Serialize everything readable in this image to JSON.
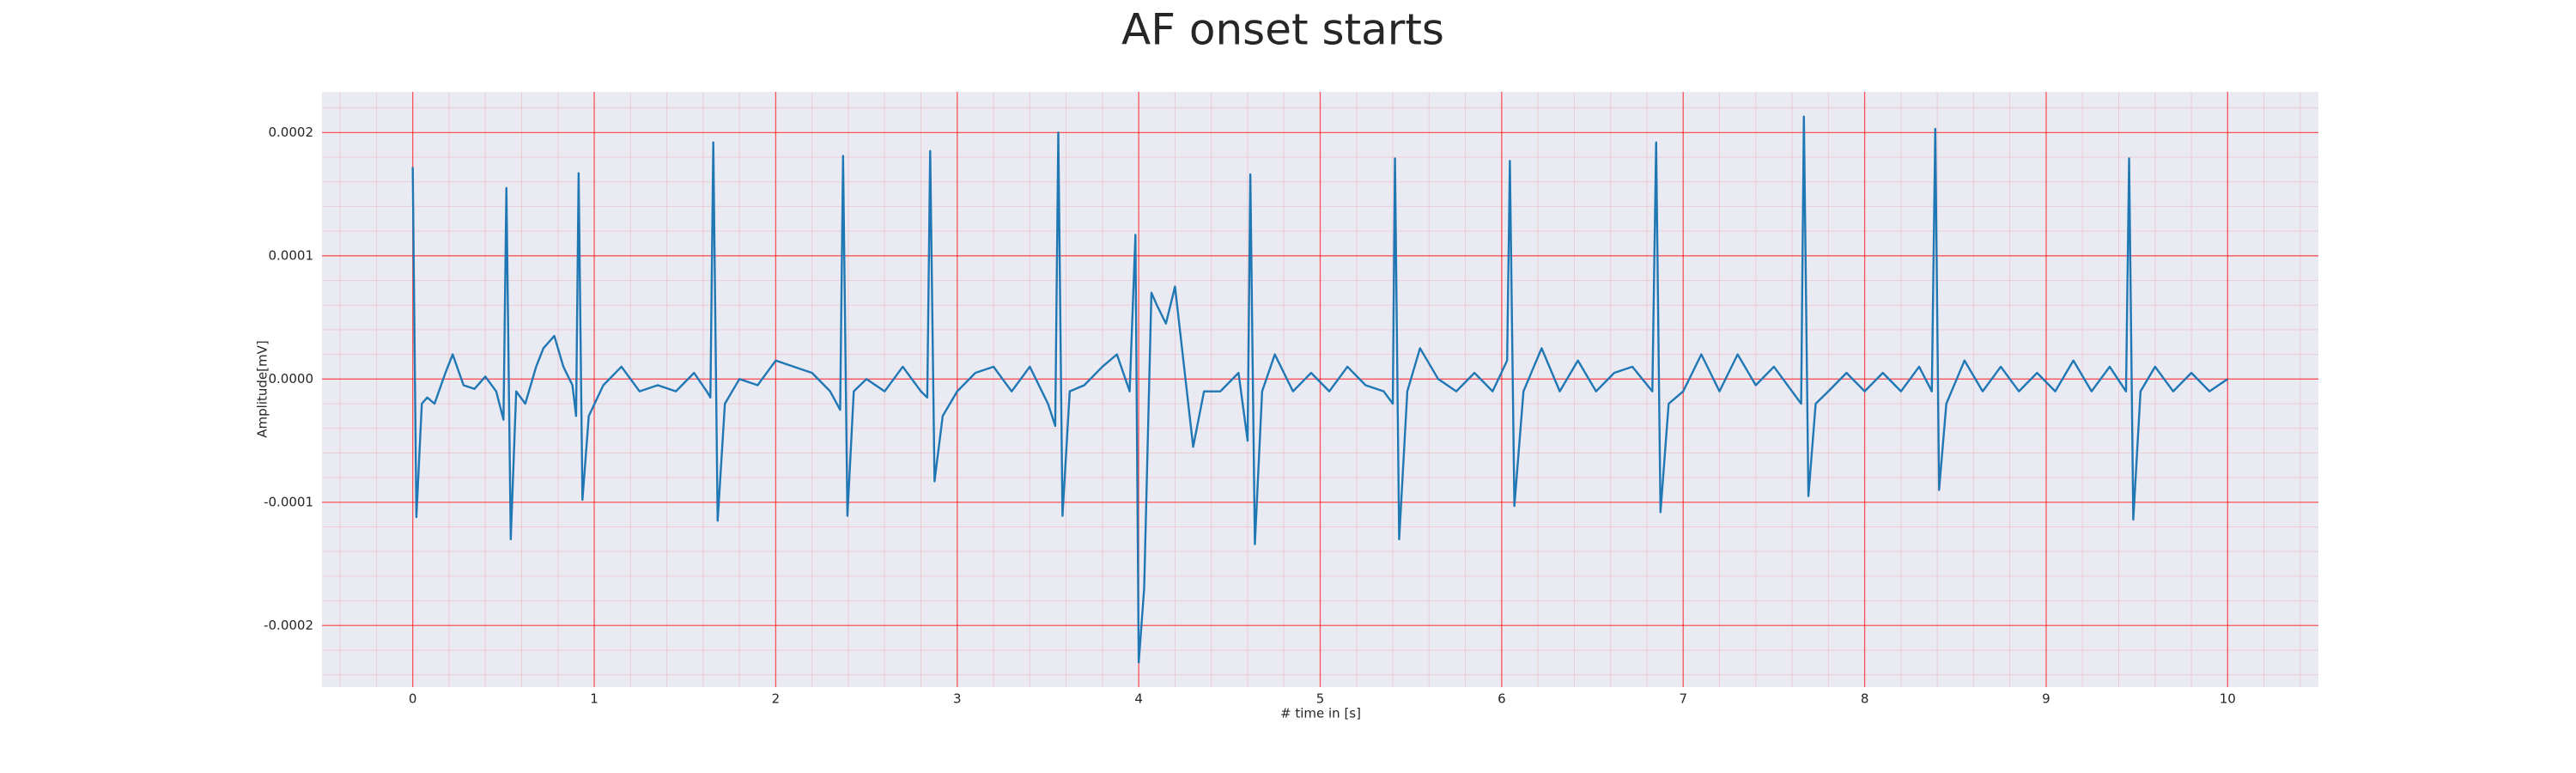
{
  "chart_data": {
    "type": "line",
    "title": "AF onset starts",
    "xlabel": "# time in [s]",
    "ylabel": "Amplitude[mV]",
    "xlim": [
      -0.5,
      10.5
    ],
    "ylim": [
      -0.00025,
      0.000233
    ],
    "xticks": [
      0,
      1,
      2,
      3,
      4,
      5,
      6,
      7,
      8,
      9,
      10
    ],
    "yticks": [
      {
        "value": -0.0002,
        "label": "-0.0002"
      },
      {
        "value": -0.0001,
        "label": "-0.0001"
      },
      {
        "value": 0,
        "label": "0.0000"
      },
      {
        "value": 0.0001,
        "label": "0.0001"
      },
      {
        "value": 0.0002,
        "label": "0.0002"
      }
    ],
    "grid": true,
    "minor_grid": true,
    "grid_color": "#ff0000",
    "background": "#eaeaf2",
    "x": [
      0,
      0.02,
      0.05,
      0.08,
      0.12,
      0.18,
      0.22,
      0.28,
      0.34,
      0.4,
      0.46,
      0.5,
      0.516,
      0.54,
      0.57,
      0.62,
      0.68,
      0.72,
      0.78,
      0.83,
      0.88,
      0.9,
      0.914,
      0.935,
      0.97,
      1.05,
      1.15,
      1.25,
      1.35,
      1.45,
      1.55,
      1.62,
      1.64,
      1.656,
      1.68,
      1.72,
      1.8,
      1.9,
      2.0,
      2.1,
      2.2,
      2.3,
      2.355,
      2.371,
      2.395,
      2.43,
      2.5,
      2.6,
      2.7,
      2.8,
      2.835,
      2.851,
      2.875,
      2.92,
      3.0,
      3.1,
      3.2,
      3.3,
      3.4,
      3.5,
      3.54,
      3.557,
      3.58,
      3.62,
      3.7,
      3.8,
      3.88,
      3.95,
      3.982,
      4.0,
      4.03,
      4.07,
      4.1,
      4.15,
      4.2,
      4.25,
      4.3,
      4.36,
      4.45,
      4.55,
      4.6,
      4.615,
      4.64,
      4.68,
      4.75,
      4.85,
      4.95,
      5.05,
      5.15,
      5.25,
      5.35,
      5.4,
      5.412,
      5.435,
      5.48,
      5.55,
      5.65,
      5.75,
      5.85,
      5.95,
      6.03,
      6.045,
      6.07,
      6.12,
      6.22,
      6.32,
      6.42,
      6.52,
      6.62,
      6.72,
      6.83,
      6.851,
      6.875,
      6.92,
      7.0,
      7.1,
      7.2,
      7.3,
      7.4,
      7.5,
      7.6,
      7.65,
      7.665,
      7.69,
      7.73,
      7.8,
      7.9,
      8.0,
      8.1,
      8.2,
      8.3,
      8.37,
      8.389,
      8.41,
      8.45,
      8.55,
      8.65,
      8.75,
      8.85,
      8.95,
      9.05,
      9.15,
      9.25,
      9.35,
      9.44,
      9.457,
      9.48,
      9.52,
      9.6,
      9.7,
      9.8,
      9.9,
      10.0
    ],
    "series": [
      {
        "color": "#1f77b4",
        "values": [
          0.000172,
          -0.000112,
          -2e-05,
          -1.5e-05,
          -2e-05,
          5e-06,
          2e-05,
          -5e-06,
          -8e-06,
          2e-06,
          -1e-05,
          -3.3e-05,
          0.000155,
          -0.00013,
          -1e-05,
          -2e-05,
          1e-05,
          2.5e-05,
          3.5e-05,
          1e-05,
          -5e-06,
          -3e-05,
          0.000167,
          -9.8e-05,
          -3e-05,
          -5e-06,
          1e-05,
          -1e-05,
          -5e-06,
          -1e-05,
          5e-06,
          -1e-05,
          -1.5e-05,
          0.000192,
          -0.000115,
          -2e-05,
          0.0,
          -5e-06,
          1.5e-05,
          1e-05,
          5e-06,
          -1e-05,
          -2.5e-05,
          0.000181,
          -0.000111,
          -1e-05,
          0.0,
          -1e-05,
          1e-05,
          -1e-05,
          -1.5e-05,
          0.000185,
          -8.3e-05,
          -3e-05,
          -1e-05,
          5e-06,
          1e-05,
          -1e-05,
          1e-05,
          -2e-05,
          -3.8e-05,
          0.0002,
          -0.000111,
          -1e-05,
          -5e-06,
          1e-05,
          2e-05,
          -1e-05,
          0.000117,
          -0.00023,
          -0.00017,
          7e-05,
          6e-05,
          4.5e-05,
          7.5e-05,
          1e-05,
          -5.5e-05,
          -1e-05,
          -1e-05,
          5e-06,
          -5e-05,
          0.000166,
          -0.000134,
          -1e-05,
          2e-05,
          -1e-05,
          5e-06,
          -1e-05,
          1e-05,
          -5e-06,
          -1e-05,
          -2e-05,
          0.000179,
          -0.00013,
          -1e-05,
          2.5e-05,
          0.0,
          -1e-05,
          5e-06,
          -1e-05,
          1.5e-05,
          0.000177,
          -0.000103,
          -1e-05,
          2.5e-05,
          -1e-05,
          1.5e-05,
          -1e-05,
          5e-06,
          1e-05,
          -1e-05,
          0.000192,
          -0.000108,
          -2e-05,
          -1e-05,
          2e-05,
          -1e-05,
          2e-05,
          -5e-06,
          1e-05,
          -1e-05,
          -2e-05,
          0.000213,
          -9.5e-05,
          -2e-05,
          -1e-05,
          5e-06,
          -1e-05,
          5e-06,
          -1e-05,
          1e-05,
          -1e-05,
          0.000203,
          -9e-05,
          -2e-05,
          1.5e-05,
          -1e-05,
          1e-05,
          -1e-05,
          5e-06,
          -1e-05,
          1.5e-05,
          -1e-05,
          1e-05,
          -1e-05,
          0.000179,
          -0.000114,
          -1e-05,
          1e-05,
          -1e-05,
          5e-06,
          -1e-05,
          0.0
        ]
      }
    ]
  }
}
